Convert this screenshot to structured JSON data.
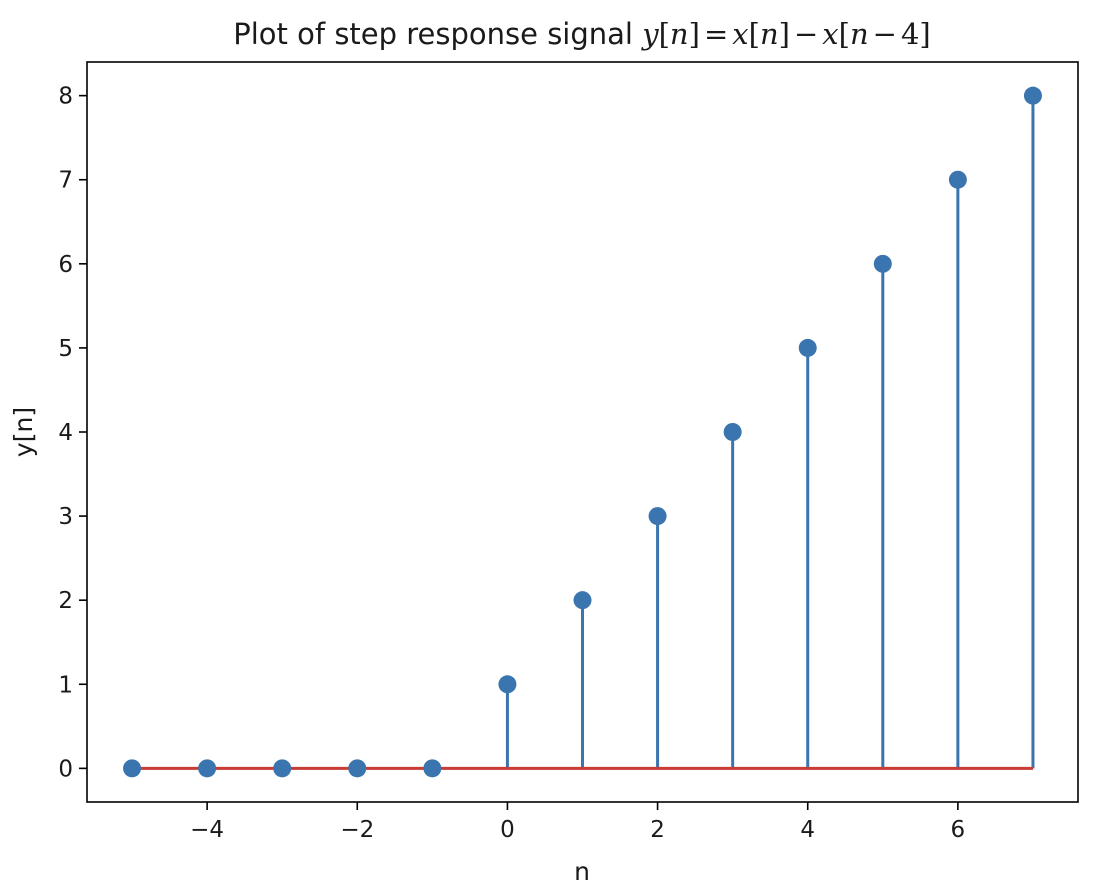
{
  "chart_data": {
    "type": "stem",
    "title_prefix": "Plot of step response signal ",
    "title_math": {
      "y": "y",
      "n": "n",
      "x": "x",
      "lb": "[",
      "rb": "]",
      "eq": "=",
      "minus": "−",
      "four": "4"
    },
    "xlabel": "n",
    "ylabel": "y[n]",
    "x": [
      -5,
      -4,
      -3,
      -2,
      -1,
      0,
      1,
      2,
      3,
      4,
      5,
      6,
      7
    ],
    "y": [
      0,
      0,
      0,
      0,
      0,
      1,
      2,
      3,
      4,
      5,
      6,
      7,
      8
    ],
    "xlim": [
      -5.6,
      7.6
    ],
    "ylim": [
      -0.4,
      8.4
    ],
    "xticks": [
      -4,
      -2,
      0,
      2,
      4,
      6
    ],
    "xtick_labels": [
      "−4",
      "−2",
      "0",
      "2",
      "4",
      "6"
    ],
    "yticks": [
      0,
      1,
      2,
      3,
      4,
      5,
      6,
      7,
      8
    ],
    "ytick_labels": [
      "0",
      "1",
      "2",
      "3",
      "4",
      "5",
      "6",
      "7",
      "8"
    ],
    "baseline": 0,
    "grid": false,
    "colors": {
      "stem": "#3b75af",
      "marker": "#3b75af",
      "baseline": "#c83c34",
      "axes": "#000000"
    }
  }
}
